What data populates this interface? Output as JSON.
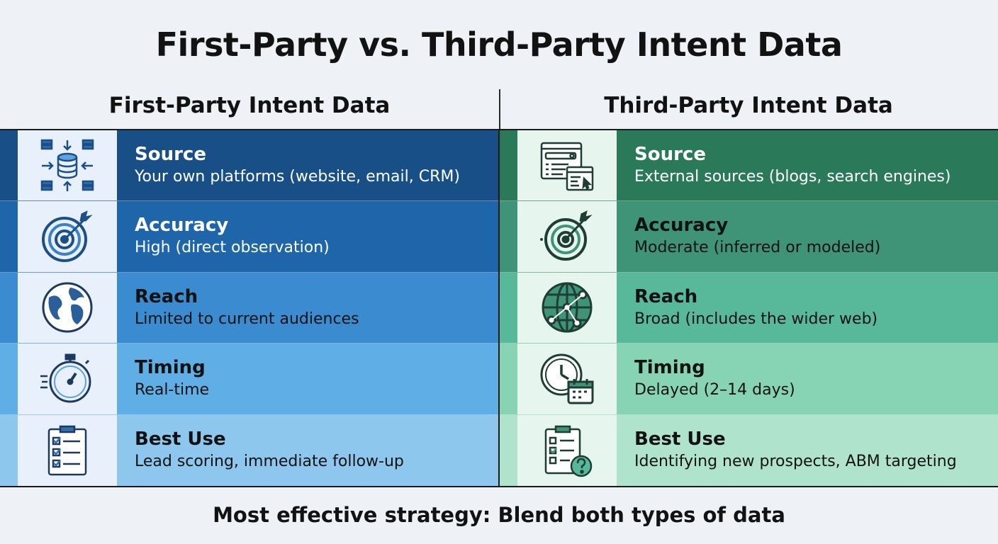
{
  "title": "First-Party vs. Third-Party Intent Data",
  "colors": {
    "left_rows": [
      "#174f86",
      "#1f65aa",
      "#3a8bd0",
      "#5faee6",
      "#8dc7ee"
    ],
    "right_rows": [
      "#2a7a5a",
      "#3f9477",
      "#58b89a",
      "#86d4b4",
      "#b0e3cc"
    ],
    "left_text": [
      "#ffffff",
      "#ffffff",
      "#121212",
      "#121212",
      "#121212"
    ],
    "right_text": [
      "#ffffff",
      "#121212",
      "#121212",
      "#121212",
      "#121212"
    ]
  },
  "left": {
    "header": "First-Party Intent Data",
    "rows": [
      {
        "icon": "database-arrows-icon",
        "label": "Source",
        "value": "Your own platforms (website, email, CRM)"
      },
      {
        "icon": "target-arrow-icon",
        "label": "Accuracy",
        "value": "High (direct observation)"
      },
      {
        "icon": "globe-icon",
        "label": "Reach",
        "value": "Limited to current audiences"
      },
      {
        "icon": "stopwatch-icon",
        "label": "Timing",
        "value": "Real-time"
      },
      {
        "icon": "checklist-icon",
        "label": "Best Use",
        "value": "Lead scoring, immediate follow-up"
      }
    ]
  },
  "right": {
    "header": "Third-Party Intent Data",
    "rows": [
      {
        "icon": "browser-windows-icon",
        "label": "Source",
        "value": "External sources (blogs, search engines)"
      },
      {
        "icon": "target-arrow-icon",
        "label": "Accuracy",
        "value": "Moderate (inferred or modeled)"
      },
      {
        "icon": "network-globe-icon",
        "label": "Reach",
        "value": "Broad (includes the wider web)"
      },
      {
        "icon": "clock-calendar-icon",
        "label": "Timing",
        "value": "Delayed (2–14 days)"
      },
      {
        "icon": "checklist-question-icon",
        "label": "Best Use",
        "value": "Identifying new prospects, ABM targeting"
      }
    ]
  },
  "footer": "Most effective strategy: Blend both types of data"
}
